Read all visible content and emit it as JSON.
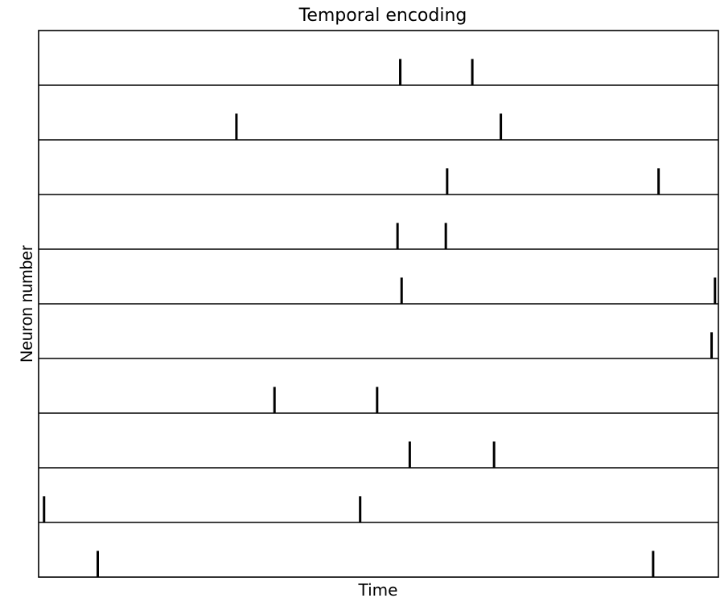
{
  "chart_data": {
    "type": "scatter",
    "style": "raster",
    "title": "Temporal encoding",
    "xlabel": "Time",
    "ylabel": "Neuron number",
    "grid": false,
    "legend": "none",
    "n_neurons": 10,
    "xlim": [
      0,
      1
    ],
    "rows": [
      {
        "spikes": [
          0.532,
          0.638
        ]
      },
      {
        "spikes": [
          0.291,
          0.68
        ]
      },
      {
        "spikes": [
          0.601,
          0.912
        ]
      },
      {
        "spikes": [
          0.528,
          0.599
        ]
      },
      {
        "spikes": [
          0.534,
          0.995
        ]
      },
      {
        "spikes": [
          0.99
        ]
      },
      {
        "spikes": [
          0.347,
          0.498
        ]
      },
      {
        "spikes": [
          0.546,
          0.67
        ]
      },
      {
        "spikes": [
          0.008,
          0.473
        ]
      },
      {
        "spikes": [
          0.087,
          0.904
        ]
      }
    ],
    "colors": {
      "spike": "#000000",
      "axes": "#000000",
      "background": "#ffffff"
    }
  }
}
